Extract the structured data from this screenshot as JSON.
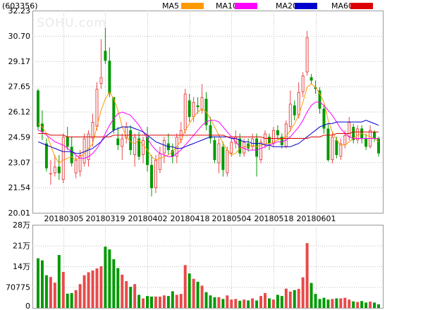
{
  "stock_code": "(603356)",
  "watermark": "SOHU.com",
  "chart_data": [
    {
      "type": "candlestick",
      "y_ticks": [
        "32.23",
        "30.70",
        "29.17",
        "27.65",
        "26.12",
        "24.59",
        "23.07",
        "21.54",
        "20.01"
      ],
      "ylim": [
        20.01,
        32.23
      ],
      "x_labels": [
        "20180305",
        "20180319",
        "20180402",
        "20180418",
        "20180504",
        "20180518",
        "20180601"
      ],
      "legend": [
        {
          "name": "MA5",
          "color": "#ff9900"
        },
        {
          "name": "MA10",
          "color": "#ff00ff"
        },
        {
          "name": "MA20",
          "color": "#0000cc"
        },
        {
          "name": "MA60",
          "color": "#dd0000"
        }
      ],
      "up_color": "#e84a4a",
      "down_color": "#009900",
      "candles": [
        [
          27.4,
          27.5,
          25.0,
          25.2
        ],
        [
          25.4,
          26.2,
          24.4,
          24.9
        ],
        [
          24.2,
          24.5,
          22.5,
          22.7
        ],
        [
          22.4,
          23.2,
          21.7,
          22.4
        ],
        [
          22.4,
          23.5,
          22.2,
          22.8
        ],
        [
          22.8,
          23.5,
          22.0,
          22.4
        ],
        [
          22.0,
          24.8,
          21.8,
          24.6
        ],
        [
          24.6,
          25.2,
          23.8,
          24.0
        ],
        [
          24.0,
          24.6,
          22.8,
          23.0
        ],
        [
          22.4,
          23.5,
          22.1,
          23.2
        ],
        [
          22.5,
          23.8,
          22.2,
          23.5
        ],
        [
          23.0,
          24.8,
          22.8,
          24.5
        ],
        [
          23.2,
          25.0,
          22.8,
          24.8
        ],
        [
          24.5,
          26.0,
          24.0,
          25.5
        ],
        [
          25.2,
          27.9,
          25.0,
          27.5
        ],
        [
          27.8,
          30.5,
          27.5,
          28.2
        ],
        [
          29.8,
          31.2,
          29.0,
          29.2
        ],
        [
          29.2,
          30.0,
          27.0,
          27.2
        ],
        [
          27.0,
          27.0,
          24.8,
          25.0
        ],
        [
          24.5,
          25.2,
          23.8,
          24.1
        ],
        [
          24.0,
          24.8,
          23.2,
          24.5
        ],
        [
          24.5,
          25.5,
          24.2,
          25.2
        ],
        [
          25.0,
          25.3,
          23.5,
          23.8
        ],
        [
          23.5,
          24.8,
          22.8,
          24.6
        ],
        [
          24.5,
          24.9,
          23.2,
          23.4
        ],
        [
          23.5,
          24.6,
          23.0,
          24.4
        ],
        [
          24.6,
          25.2,
          22.5,
          22.9
        ],
        [
          22.9,
          23.5,
          21.0,
          21.5
        ],
        [
          21.5,
          23.5,
          21.2,
          23.2
        ],
        [
          22.6,
          24.0,
          22.4,
          23.6
        ],
        [
          23.6,
          24.6,
          23.0,
          24.4
        ],
        [
          24.2,
          24.8,
          23.5,
          23.8
        ],
        [
          23.8,
          24.2,
          23.0,
          23.4
        ],
        [
          23.4,
          24.8,
          23.0,
          24.6
        ],
        [
          24.4,
          25.5,
          24.2,
          25.0
        ],
        [
          25.0,
          27.5,
          24.8,
          27.2
        ],
        [
          26.8,
          27.2,
          25.5,
          25.8
        ],
        [
          25.8,
          27.0,
          25.5,
          26.7
        ],
        [
          26.5,
          27.0,
          26.0,
          26.4
        ],
        [
          26.2,
          27.8,
          26.0,
          27.0
        ],
        [
          26.9,
          27.3,
          25.0,
          25.3
        ],
        [
          25.3,
          25.8,
          24.2,
          24.5
        ],
        [
          24.4,
          24.6,
          23.0,
          23.2
        ],
        [
          23.0,
          24.5,
          22.4,
          24.2
        ],
        [
          24.0,
          24.3,
          22.2,
          22.6
        ],
        [
          22.4,
          24.0,
          22.2,
          23.8
        ],
        [
          23.6,
          24.5,
          23.4,
          24.3
        ],
        [
          24.2,
          25.0,
          23.9,
          24.6
        ],
        [
          24.5,
          24.8,
          23.4,
          23.6
        ],
        [
          23.6,
          24.5,
          23.4,
          24.3
        ],
        [
          24.2,
          24.5,
          23.7,
          23.9
        ],
        [
          24.0,
          24.8,
          23.8,
          24.5
        ],
        [
          24.5,
          24.8,
          22.2,
          23.4
        ],
        [
          23.2,
          24.5,
          23.0,
          24.3
        ],
        [
          24.1,
          25.0,
          23.9,
          24.8
        ],
        [
          24.6,
          24.8,
          23.8,
          24.2
        ],
        [
          24.2,
          25.2,
          24.0,
          25.0
        ],
        [
          25.0,
          25.3,
          24.4,
          24.7
        ],
        [
          24.6,
          24.8,
          23.9,
          24.1
        ],
        [
          24.0,
          25.6,
          23.9,
          25.4
        ],
        [
          25.2,
          27.4,
          24.9,
          26.6
        ],
        [
          26.5,
          26.8,
          25.6,
          25.9
        ],
        [
          25.9,
          27.9,
          25.7,
          27.3
        ],
        [
          27.3,
          28.5,
          27.0,
          28.3
        ],
        [
          28.5,
          31.0,
          28.3,
          30.6
        ],
        [
          28.2,
          28.4,
          27.8,
          28.0
        ],
        [
          27.6,
          28.0,
          27.2,
          27.5
        ],
        [
          27.4,
          27.6,
          26.0,
          26.3
        ],
        [
          26.3,
          26.5,
          24.8,
          25.1
        ],
        [
          25.1,
          25.4,
          23.1,
          23.2
        ],
        [
          23.2,
          24.9,
          23.0,
          24.6
        ],
        [
          24.4,
          24.6,
          23.3,
          23.5
        ],
        [
          23.4,
          24.5,
          23.2,
          24.2
        ],
        [
          24.1,
          25.0,
          23.9,
          24.7
        ],
        [
          24.6,
          25.8,
          24.4,
          25.5
        ],
        [
          25.2,
          25.4,
          24.2,
          24.4
        ],
        [
          24.4,
          25.3,
          24.2,
          25.1
        ],
        [
          25.1,
          25.3,
          24.2,
          24.5
        ],
        [
          24.5,
          24.8,
          23.8,
          24.0
        ],
        [
          24.0,
          25.3,
          23.9,
          25.0
        ],
        [
          24.9,
          25.0,
          24.3,
          24.5
        ],
        [
          24.5,
          24.6,
          23.4,
          23.6
        ]
      ],
      "ma5": [
        25.4,
        25.2,
        24.8,
        24.1,
        23.4,
        23.0,
        23.2,
        23.3,
        23.4,
        23.2,
        23.4,
        23.6,
        23.9,
        24.2,
        25.2,
        26.2,
        26.9,
        27.3,
        26.9,
        26.2,
        25.2,
        24.6,
        24.3,
        24.2,
        24.4,
        24.1,
        23.8,
        23.4,
        23.2,
        23.3,
        23.4,
        23.5,
        23.7,
        24.0,
        24.4,
        25.0,
        25.4,
        25.8,
        26.1,
        26.3,
        26.1,
        25.7,
        25.2,
        24.7,
        24.2,
        23.8,
        23.5,
        23.6,
        23.9,
        24.0,
        24.0,
        24.1,
        24.0,
        24.1,
        24.2,
        24.2,
        24.3,
        24.4,
        24.5,
        24.6,
        25.0,
        25.4,
        25.9,
        26.7,
        27.6,
        27.8,
        27.6,
        27.2,
        26.7,
        25.6,
        24.9,
        24.4,
        24.1,
        24.1,
        24.3,
        24.5,
        24.7,
        24.8,
        24.7,
        24.6,
        24.5,
        24.3
      ],
      "ma10": [
        25.0,
        24.9,
        24.7,
        24.5,
        24.3,
        24.2,
        24.1,
        23.9,
        23.7,
        23.5,
        23.3,
        23.3,
        23.4,
        23.6,
        23.9,
        24.3,
        24.8,
        25.3,
        25.7,
        26.0,
        26.1,
        26.0,
        25.9,
        25.6,
        25.3,
        24.9,
        24.5,
        24.1,
        23.8,
        23.6,
        23.5,
        23.4,
        23.4,
        23.6,
        23.8,
        24.1,
        24.4,
        24.7,
        25.0,
        25.3,
        25.5,
        25.6,
        25.6,
        25.5,
        25.2,
        24.9,
        24.6,
        24.3,
        24.0,
        23.9,
        23.8,
        23.8,
        23.8,
        23.9,
        24.0,
        24.1,
        24.2,
        24.3,
        24.3,
        24.4,
        24.6,
        24.9,
        25.2,
        25.6,
        26.1,
        26.5,
        26.7,
        26.7,
        26.5,
        26.2,
        25.9,
        25.5,
        25.1,
        24.8,
        24.6,
        24.5,
        24.5,
        24.5,
        24.5,
        24.5,
        24.5,
        24.5
      ],
      "ma20": [
        24.3,
        24.2,
        24.1,
        24.0,
        23.9,
        23.8,
        23.7,
        23.7,
        23.7,
        23.6,
        23.6,
        23.7,
        23.8,
        23.9,
        24.1,
        24.3,
        24.6,
        24.8,
        25.0,
        25.1,
        25.2,
        25.2,
        25.2,
        25.1,
        25.0,
        24.9,
        24.7,
        24.5,
        24.3,
        24.2,
        24.1,
        24.0,
        24.0,
        23.9,
        23.9,
        24.0,
        24.1,
        24.2,
        24.3,
        24.4,
        24.5,
        24.6,
        24.6,
        24.6,
        24.6,
        24.6,
        24.5,
        24.5,
        24.4,
        24.3,
        24.3,
        24.2,
        24.2,
        24.2,
        24.1,
        24.1,
        24.0,
        24.0,
        24.0,
        24.0,
        24.0,
        24.1,
        24.2,
        24.4,
        24.6,
        24.8,
        25.0,
        25.2,
        25.3,
        25.4,
        25.4,
        25.5,
        25.5,
        25.5,
        25.5,
        25.5,
        25.5,
        25.5,
        25.6,
        25.5,
        25.4,
        25.3
      ],
      "ma60": [
        24.8,
        24.8,
        24.8,
        24.7,
        24.7,
        24.7,
        24.7,
        24.6,
        24.6,
        24.6,
        24.6,
        24.6,
        24.6,
        24.6,
        24.6,
        24.6,
        24.6,
        24.6,
        24.7,
        24.7,
        24.7,
        24.7,
        24.7,
        24.7,
        24.7,
        24.7,
        24.7,
        24.7,
        24.7,
        24.7,
        24.7,
        24.7,
        24.7,
        24.7,
        24.7,
        24.7,
        24.7,
        24.7,
        24.7,
        24.7,
        24.7,
        24.7,
        24.7,
        24.7,
        24.7,
        24.6,
        24.6,
        24.6,
        24.6,
        24.6,
        24.6,
        24.6,
        24.6,
        24.6,
        24.5,
        24.5,
        24.5,
        24.5,
        24.5,
        24.5,
        24.5,
        24.5,
        24.5,
        24.5,
        24.5,
        24.6,
        24.6,
        24.6,
        24.7,
        24.7,
        24.7,
        24.8,
        24.8,
        24.8,
        24.8,
        24.9,
        24.9,
        24.9,
        24.9,
        24.9,
        24.9,
        24.9
      ]
    },
    {
      "type": "bar",
      "y_ticks": [
        "28万",
        "21万",
        "14万",
        "70775",
        "0"
      ],
      "ylim": [
        0,
        280000
      ],
      "volumes": [
        167000,
        160000,
        110000,
        104000,
        85000,
        178000,
        121000,
        48000,
        50000,
        60000,
        80000,
        110000,
        120000,
        126000,
        133000,
        140000,
        206000,
        197000,
        164000,
        134000,
        112000,
        90000,
        71000,
        80000,
        44000,
        32000,
        40000,
        38000,
        38000,
        38000,
        42000,
        40000,
        56000,
        44000,
        47000,
        144000,
        116000,
        98000,
        88000,
        75000,
        53000,
        42000,
        36000,
        36000,
        30000,
        42000,
        28000,
        30000,
        24000,
        28000,
        25000,
        32000,
        25000,
        40000,
        50000,
        32000,
        28000,
        44000,
        40000,
        65000,
        55000,
        60000,
        64000,
        103000,
        218000,
        84000,
        47000,
        30000,
        34000,
        28000,
        30000,
        32000,
        32000,
        34000,
        28000,
        22000,
        20000,
        23000,
        18000,
        21000,
        18000,
        12000
      ]
    }
  ]
}
